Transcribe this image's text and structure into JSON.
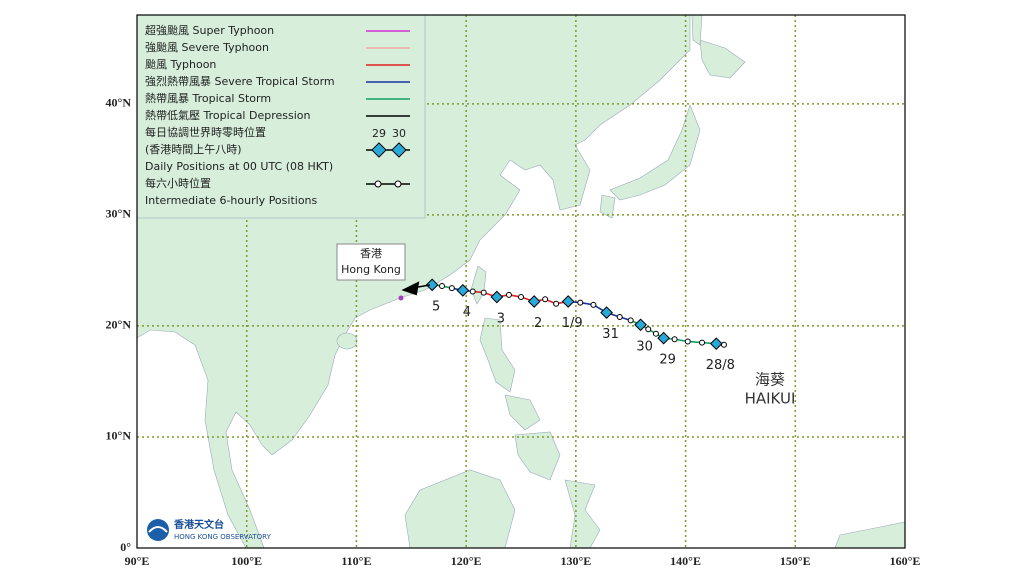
{
  "map": {
    "lon_range": [
      90,
      160
    ],
    "lat_range": [
      0,
      48
    ],
    "lat_labels": [
      {
        "value": 0,
        "label": "0°"
      },
      {
        "value": 10,
        "label": "10°N"
      },
      {
        "value": 20,
        "label": "20°N"
      },
      {
        "value": 30,
        "label": "30°N"
      },
      {
        "value": 40,
        "label": "40°N"
      }
    ],
    "lon_labels": [
      {
        "value": 90,
        "label": "90°E"
      },
      {
        "value": 100,
        "label": "100°E"
      },
      {
        "value": 110,
        "label": "110°E"
      },
      {
        "value": 120,
        "label": "120°E"
      },
      {
        "value": 130,
        "label": "130°E"
      },
      {
        "value": 140,
        "label": "140°E"
      },
      {
        "value": 150,
        "label": "150°E"
      },
      {
        "value": 160,
        "label": "160°E"
      }
    ],
    "grid_color": "#7d9a2a",
    "land_color": "#d7eedb"
  },
  "legend": {
    "entries": [
      {
        "label": "超強颱風 Super Typhoon",
        "color": "#d030d0"
      },
      {
        "label": "強颱風 Severe Typhoon",
        "color": "#f4a8a8"
      },
      {
        "label": "颱風 Typhoon",
        "color": "#e02020"
      },
      {
        "label": "強烈熱帶風暴 Severe Tropical Storm",
        "color": "#1830a0"
      },
      {
        "label": "熱帶風暴 Tropical Storm",
        "color": "#10a060"
      },
      {
        "label": "熱帶低氣壓 Tropical Depression",
        "color": "#000000"
      }
    ],
    "daily_label_zh": "每日協調世界時零時位置",
    "daily_label_zh2": "(香港時間上午八時)",
    "daily_label_en": "Daily Positions at 00 UTC (08 HKT)",
    "sample_days": [
      "29",
      "30"
    ],
    "hourly_label_zh": "每六小時位置",
    "hourly_label_en": "Intermediate 6-hourly Positions"
  },
  "track": {
    "points": [
      {
        "lon": 143.5,
        "lat": 18.3,
        "day": null,
        "color": "#000000"
      },
      {
        "lon": 142.8,
        "lat": 18.4,
        "day": "28/8",
        "color": "#10a060"
      },
      {
        "lon": 141.5,
        "lat": 18.5,
        "day": null,
        "color": "#10a060"
      },
      {
        "lon": 140.2,
        "lat": 18.6,
        "day": null,
        "color": "#10a060"
      },
      {
        "lon": 139.0,
        "lat": 18.8,
        "day": null,
        "color": "#10a060"
      },
      {
        "lon": 138.0,
        "lat": 18.9,
        "day": "29",
        "color": "#10a060"
      },
      {
        "lon": 137.3,
        "lat": 19.3,
        "day": null,
        "color": "#10a060"
      },
      {
        "lon": 136.6,
        "lat": 19.7,
        "day": null,
        "color": "#10a060"
      },
      {
        "lon": 135.9,
        "lat": 20.1,
        "day": "30",
        "color": "#10a060"
      },
      {
        "lon": 135.0,
        "lat": 20.5,
        "day": null,
        "color": "#10a060"
      },
      {
        "lon": 134.0,
        "lat": 20.8,
        "day": null,
        "color": "#1830a0"
      },
      {
        "lon": 132.8,
        "lat": 21.2,
        "day": "31",
        "color": "#1830a0"
      },
      {
        "lon": 131.6,
        "lat": 21.9,
        "day": null,
        "color": "#1830a0"
      },
      {
        "lon": 130.4,
        "lat": 22.1,
        "day": null,
        "color": "#1830a0"
      },
      {
        "lon": 129.3,
        "lat": 22.2,
        "day": "1/9",
        "color": "#1830a0"
      },
      {
        "lon": 128.2,
        "lat": 22.0,
        "day": null,
        "color": "#e02020"
      },
      {
        "lon": 127.2,
        "lat": 22.4,
        "day": null,
        "color": "#e02020"
      },
      {
        "lon": 126.2,
        "lat": 22.2,
        "day": "2",
        "color": "#e02020"
      },
      {
        "lon": 125.0,
        "lat": 22.6,
        "day": null,
        "color": "#e02020"
      },
      {
        "lon": 123.9,
        "lat": 22.8,
        "day": null,
        "color": "#e02020"
      },
      {
        "lon": 122.8,
        "lat": 22.6,
        "day": "3",
        "color": "#e02020"
      },
      {
        "lon": 121.6,
        "lat": 23.0,
        "day": null,
        "color": "#e02020"
      },
      {
        "lon": 120.6,
        "lat": 23.1,
        "day": null,
        "color": "#e02020"
      },
      {
        "lon": 119.7,
        "lat": 23.2,
        "day": "4",
        "color": "#1830a0"
      },
      {
        "lon": 118.7,
        "lat": 23.4,
        "day": null,
        "color": "#1830a0"
      },
      {
        "lon": 117.8,
        "lat": 23.6,
        "day": null,
        "color": "#10a060"
      },
      {
        "lon": 116.9,
        "lat": 23.7,
        "day": "5",
        "color": "#10a060"
      }
    ]
  },
  "hong_kong": {
    "label_zh": "香港",
    "label_en": "Hong Kong"
  },
  "storm": {
    "name_zh": "海葵",
    "name_en": "HAIKUI"
  },
  "logo": {
    "name_zh": "香港天文台",
    "name_en": "HONG KONG OBSERVATORY"
  }
}
